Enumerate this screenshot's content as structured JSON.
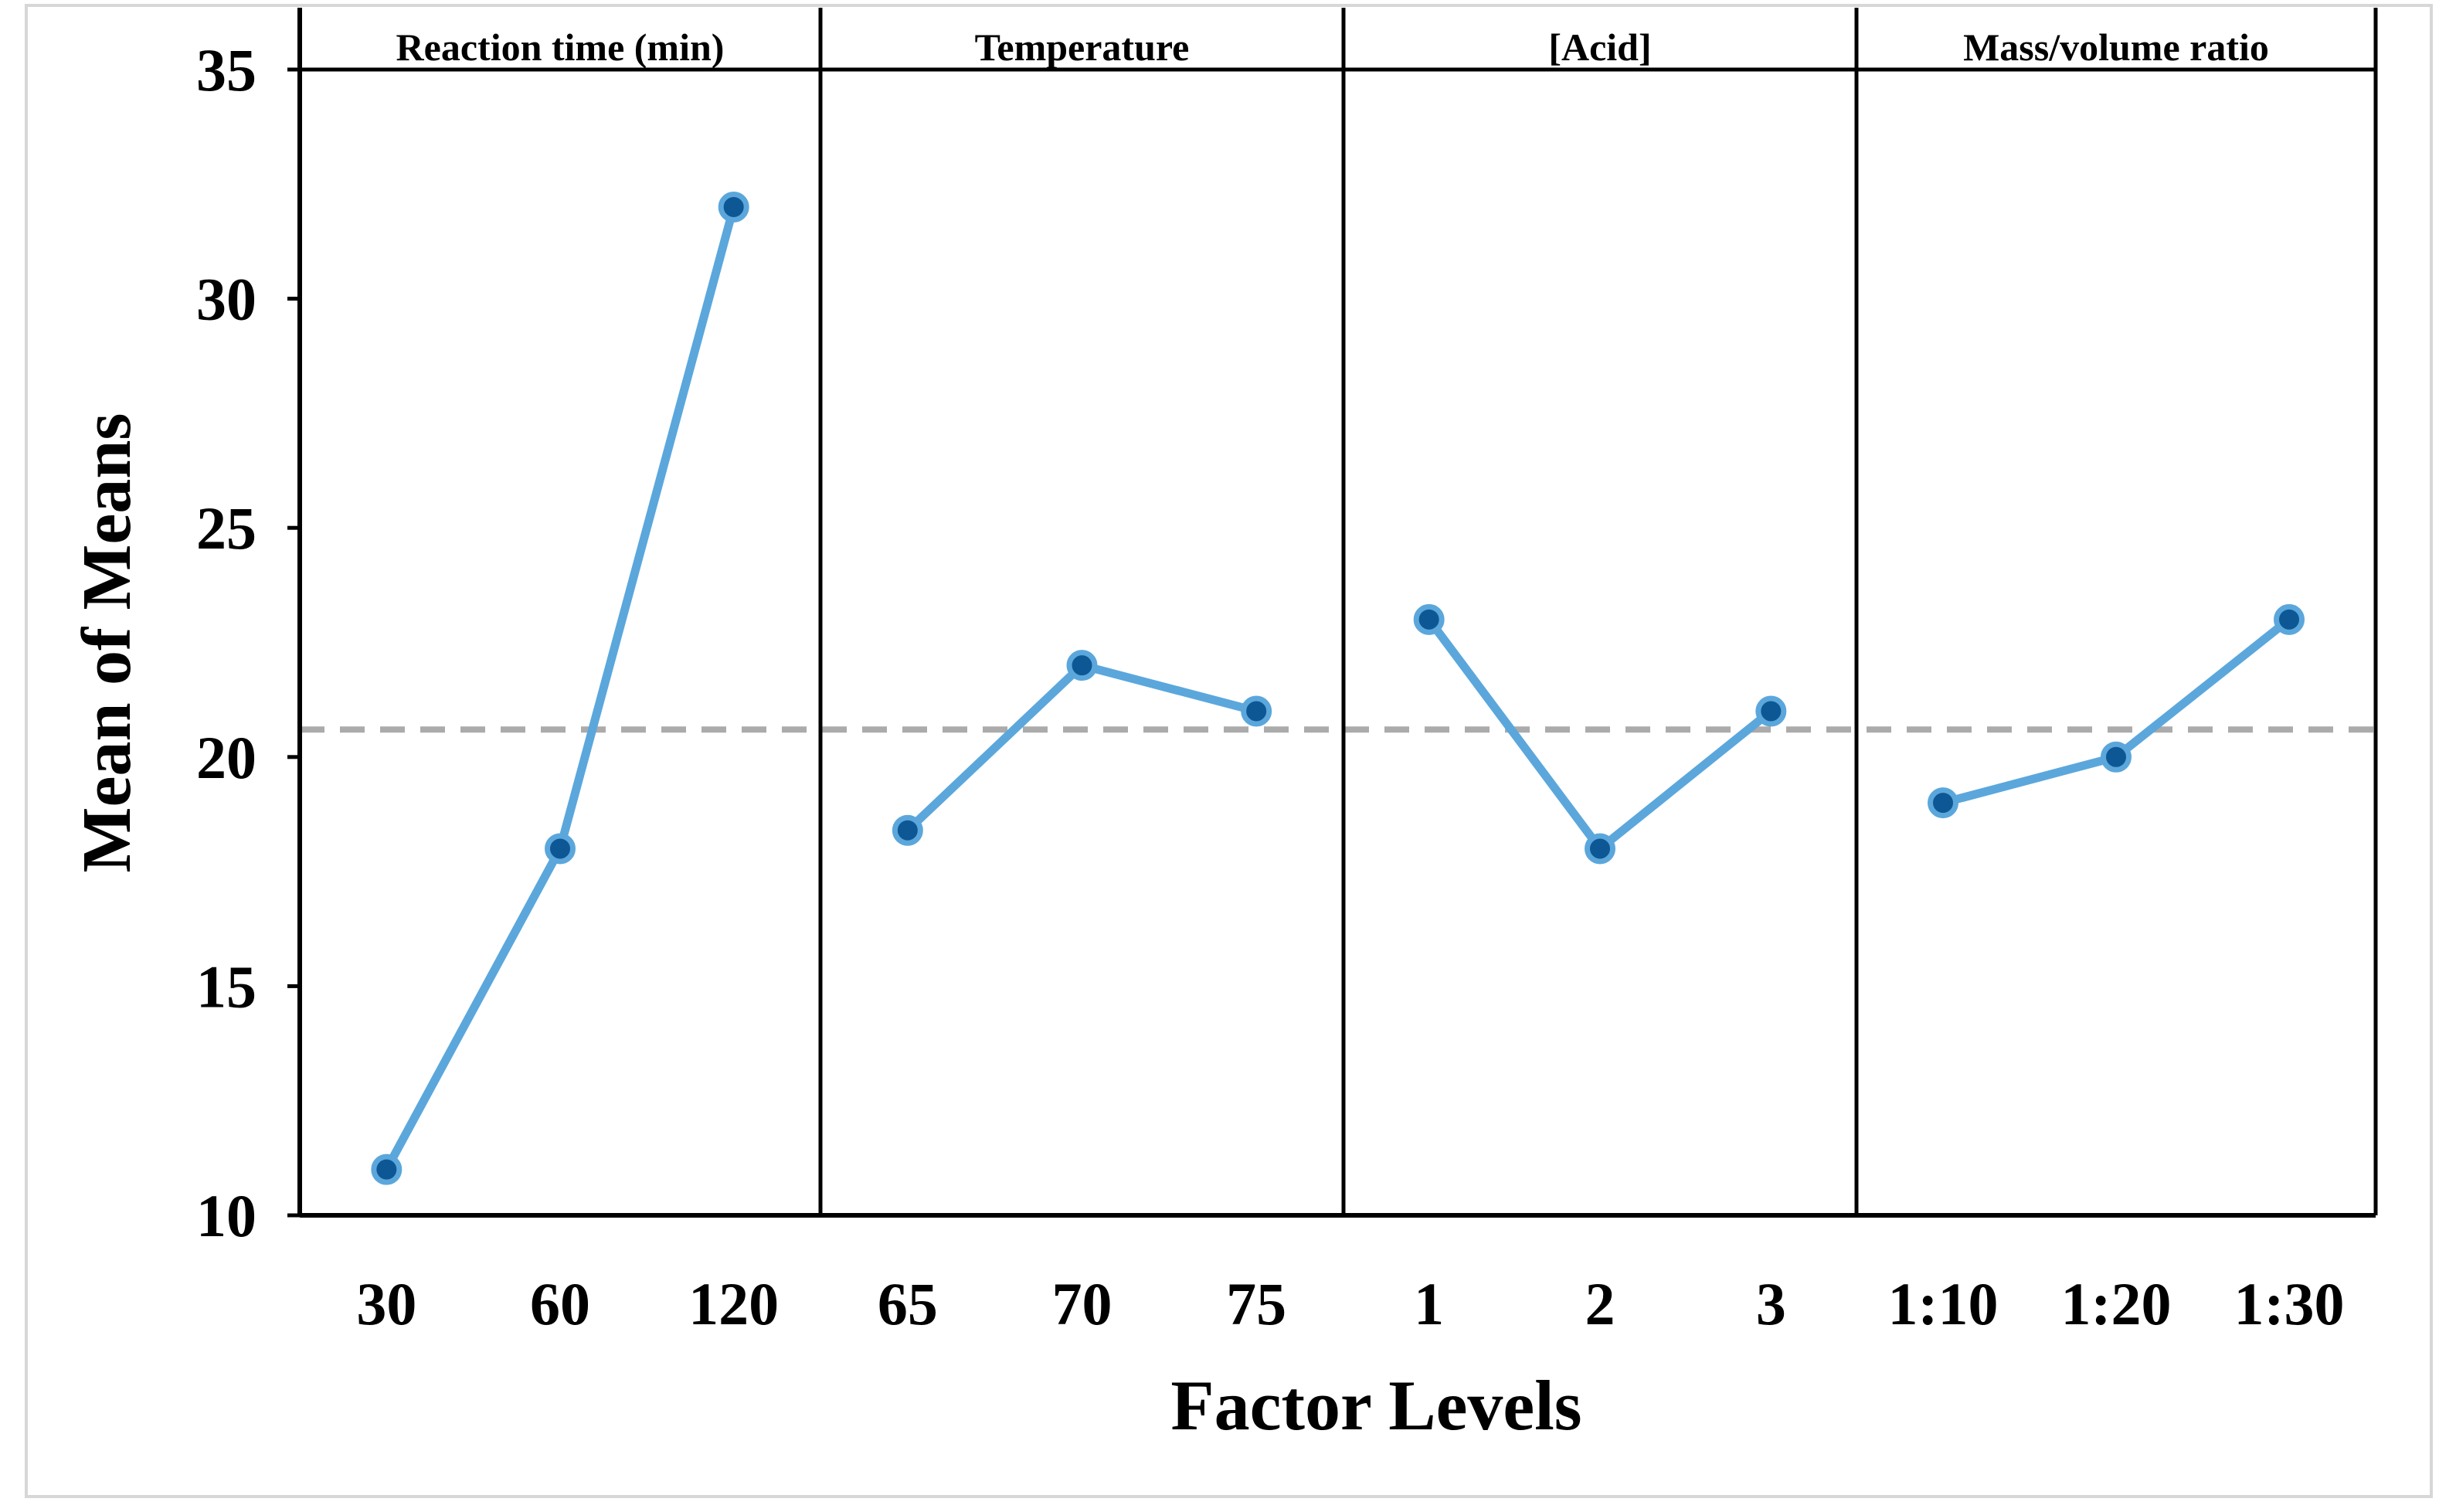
{
  "chart_data": {
    "type": "line",
    "title": "",
    "ylabel": "Mean of Means",
    "xlabel": "Factor Levels",
    "ylim": [
      10,
      35
    ],
    "yticks": [
      35,
      30,
      25,
      20,
      15,
      10
    ],
    "grand_mean": 20.6,
    "grid": "off",
    "legend": "none",
    "panels": [
      {
        "label": "Reaction time (min)",
        "categories": [
          "30",
          "60",
          "120"
        ],
        "values": [
          11,
          18,
          32
        ]
      },
      {
        "label": "Temperature",
        "categories": [
          "65",
          "70",
          "75"
        ],
        "values": [
          18.4,
          22,
          21
        ]
      },
      {
        "label": "[Acid]",
        "categories": [
          "1",
          "2",
          "3"
        ],
        "values": [
          23,
          18,
          21
        ]
      },
      {
        "label": "Mass/volume ratio",
        "categories": [
          "1:10",
          "1:20",
          "1:30"
        ],
        "values": [
          19,
          20,
          23
        ]
      }
    ],
    "colors": {
      "series_line": "#5BA7DC",
      "marker_fill": "#0E5795",
      "marker_ring": "#5BA7DC",
      "mean_line": "#ABABAB",
      "axis": "#000000",
      "outer_frame": "#D7D7D7",
      "background": "#FFFFFF"
    }
  }
}
